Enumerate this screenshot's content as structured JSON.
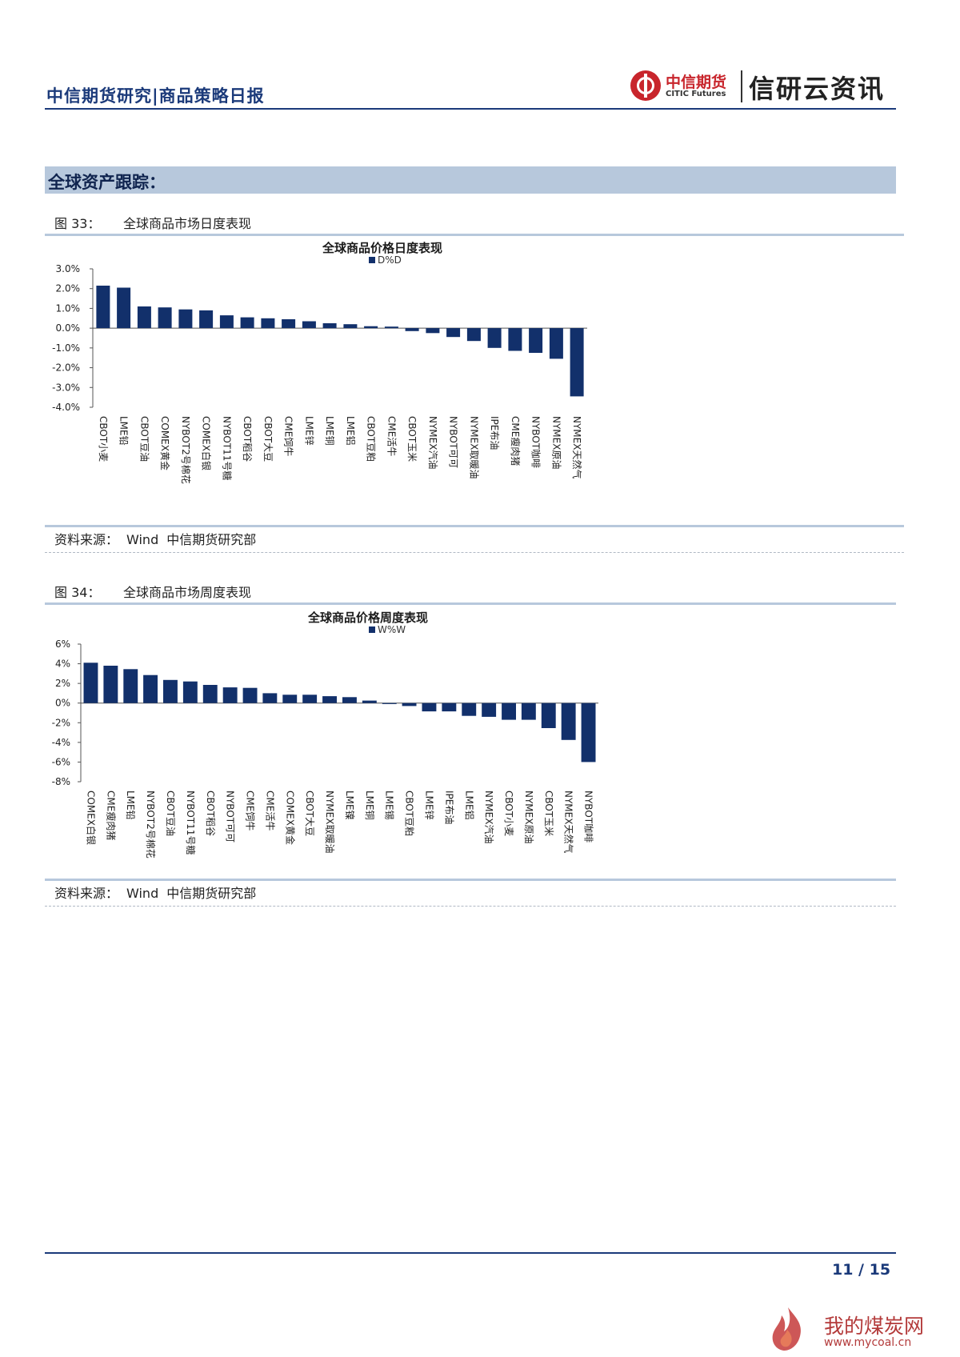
{
  "header": {
    "doc_title": "中信期货研究|商品策略日报",
    "brand_cn": "中信期货",
    "brand_en": "CITIC Futures",
    "brand_slogan": "信研云资讯"
  },
  "section": {
    "title": "全球资产跟踪："
  },
  "figures": [
    {
      "number": "图 33：",
      "caption": "全球商品市场日度表现",
      "source_label": "资料来源：",
      "source_wind": "Wind",
      "source_dept": "中信期货研究部"
    },
    {
      "number": "图 34：",
      "caption": "全球商品市场周度表现",
      "source_label": "资料来源：",
      "source_wind": "Wind",
      "source_dept": "中信期货研究部"
    }
  ],
  "chart_data": [
    {
      "type": "bar",
      "title": "全球商品价格日度表现",
      "series": [
        {
          "name": "D%D",
          "values": [
            2.15,
            2.05,
            1.1,
            1.05,
            0.95,
            0.9,
            0.65,
            0.55,
            0.5,
            0.45,
            0.35,
            0.25,
            0.2,
            0.1,
            0.08,
            -0.15,
            -0.25,
            -0.45,
            -0.65,
            -1.0,
            -1.15,
            -1.25,
            -1.55,
            -3.45
          ]
        }
      ],
      "categories": [
        "CBOT小麦",
        "LME铅",
        "CBOT豆油",
        "COMEX黄金",
        "NYBOT2号棉花",
        "COMEX白银",
        "NYBOT11号糖",
        "CBOT稻谷",
        "CBOT大豆",
        "CME饲牛",
        "LME锌",
        "LME铜",
        "LME铝",
        "CBOT豆粕",
        "CME活牛",
        "CBOT玉米",
        "NYMEX汽油",
        "NYBOT可可",
        "NYMEX取暖油",
        "IPE布油",
        "CME瘦肉猪",
        "NYBOT咖啡",
        "NYMEX原油",
        "NYMEX天然气"
      ],
      "ylim": [
        -4.0,
        3.0
      ],
      "yticks": [
        3.0,
        2.0,
        1.0,
        0.0,
        -1.0,
        -2.0,
        -3.0,
        -4.0
      ],
      "ytick_labels": [
        "3.0%",
        "2.0%",
        "1.0%",
        "0.0%",
        "-1.0%",
        "-2.0%",
        "-3.0%",
        "-4.0%"
      ],
      "legend_position": "top-center",
      "grid": false,
      "xlabel": "",
      "ylabel": ""
    },
    {
      "type": "bar",
      "title": "全球商品价格周度表现",
      "series": [
        {
          "name": "W%W",
          "values": [
            4.1,
            3.8,
            3.45,
            2.85,
            2.35,
            2.2,
            1.85,
            1.6,
            1.55,
            1.0,
            0.85,
            0.85,
            0.7,
            0.6,
            0.25,
            -0.1,
            -0.3,
            -0.85,
            -0.85,
            -1.3,
            -1.4,
            -1.7,
            -1.7,
            -2.55,
            -3.75,
            -6.0
          ]
        }
      ],
      "categories": [
        "COMEX白银",
        "CME瘦肉猪",
        "LME铅",
        "NYBOT2号棉花",
        "CBOT豆油",
        "NYBOT11号糖",
        "CBOT稻谷",
        "NYBOT可可",
        "CME饲牛",
        "CME活牛",
        "COMEX黄金",
        "CBOT大豆",
        "NYMEX取暖油",
        "LME镍",
        "LME铜",
        "LME锡",
        "CBOT豆粕",
        "LME锌",
        "IPE布油",
        "LME铝",
        "NYMEX汽油",
        "CBOT小麦",
        "NYMEX原油",
        "CBOT玉米",
        "NYMEX天然气",
        "NYBOT咖啡"
      ],
      "ylim": [
        -8,
        6
      ],
      "yticks": [
        6,
        4,
        2,
        0,
        -2,
        -4,
        -6,
        -8
      ],
      "ytick_labels": [
        "6%",
        "4%",
        "2%",
        "0%",
        "-2%",
        "-4%",
        "-6%",
        "-8%"
      ],
      "legend_position": "top-center",
      "grid": false,
      "xlabel": "",
      "ylabel": ""
    }
  ],
  "footer": {
    "page": "11 / 15"
  },
  "watermark": {
    "text": "我的煤炭网",
    "url": "www.mycoal.cn"
  },
  "colors": {
    "bar": "#12306b",
    "accent": "#1b3a7a",
    "section_bg": "#b7c8dc",
    "brand_red": "#c8252c"
  }
}
